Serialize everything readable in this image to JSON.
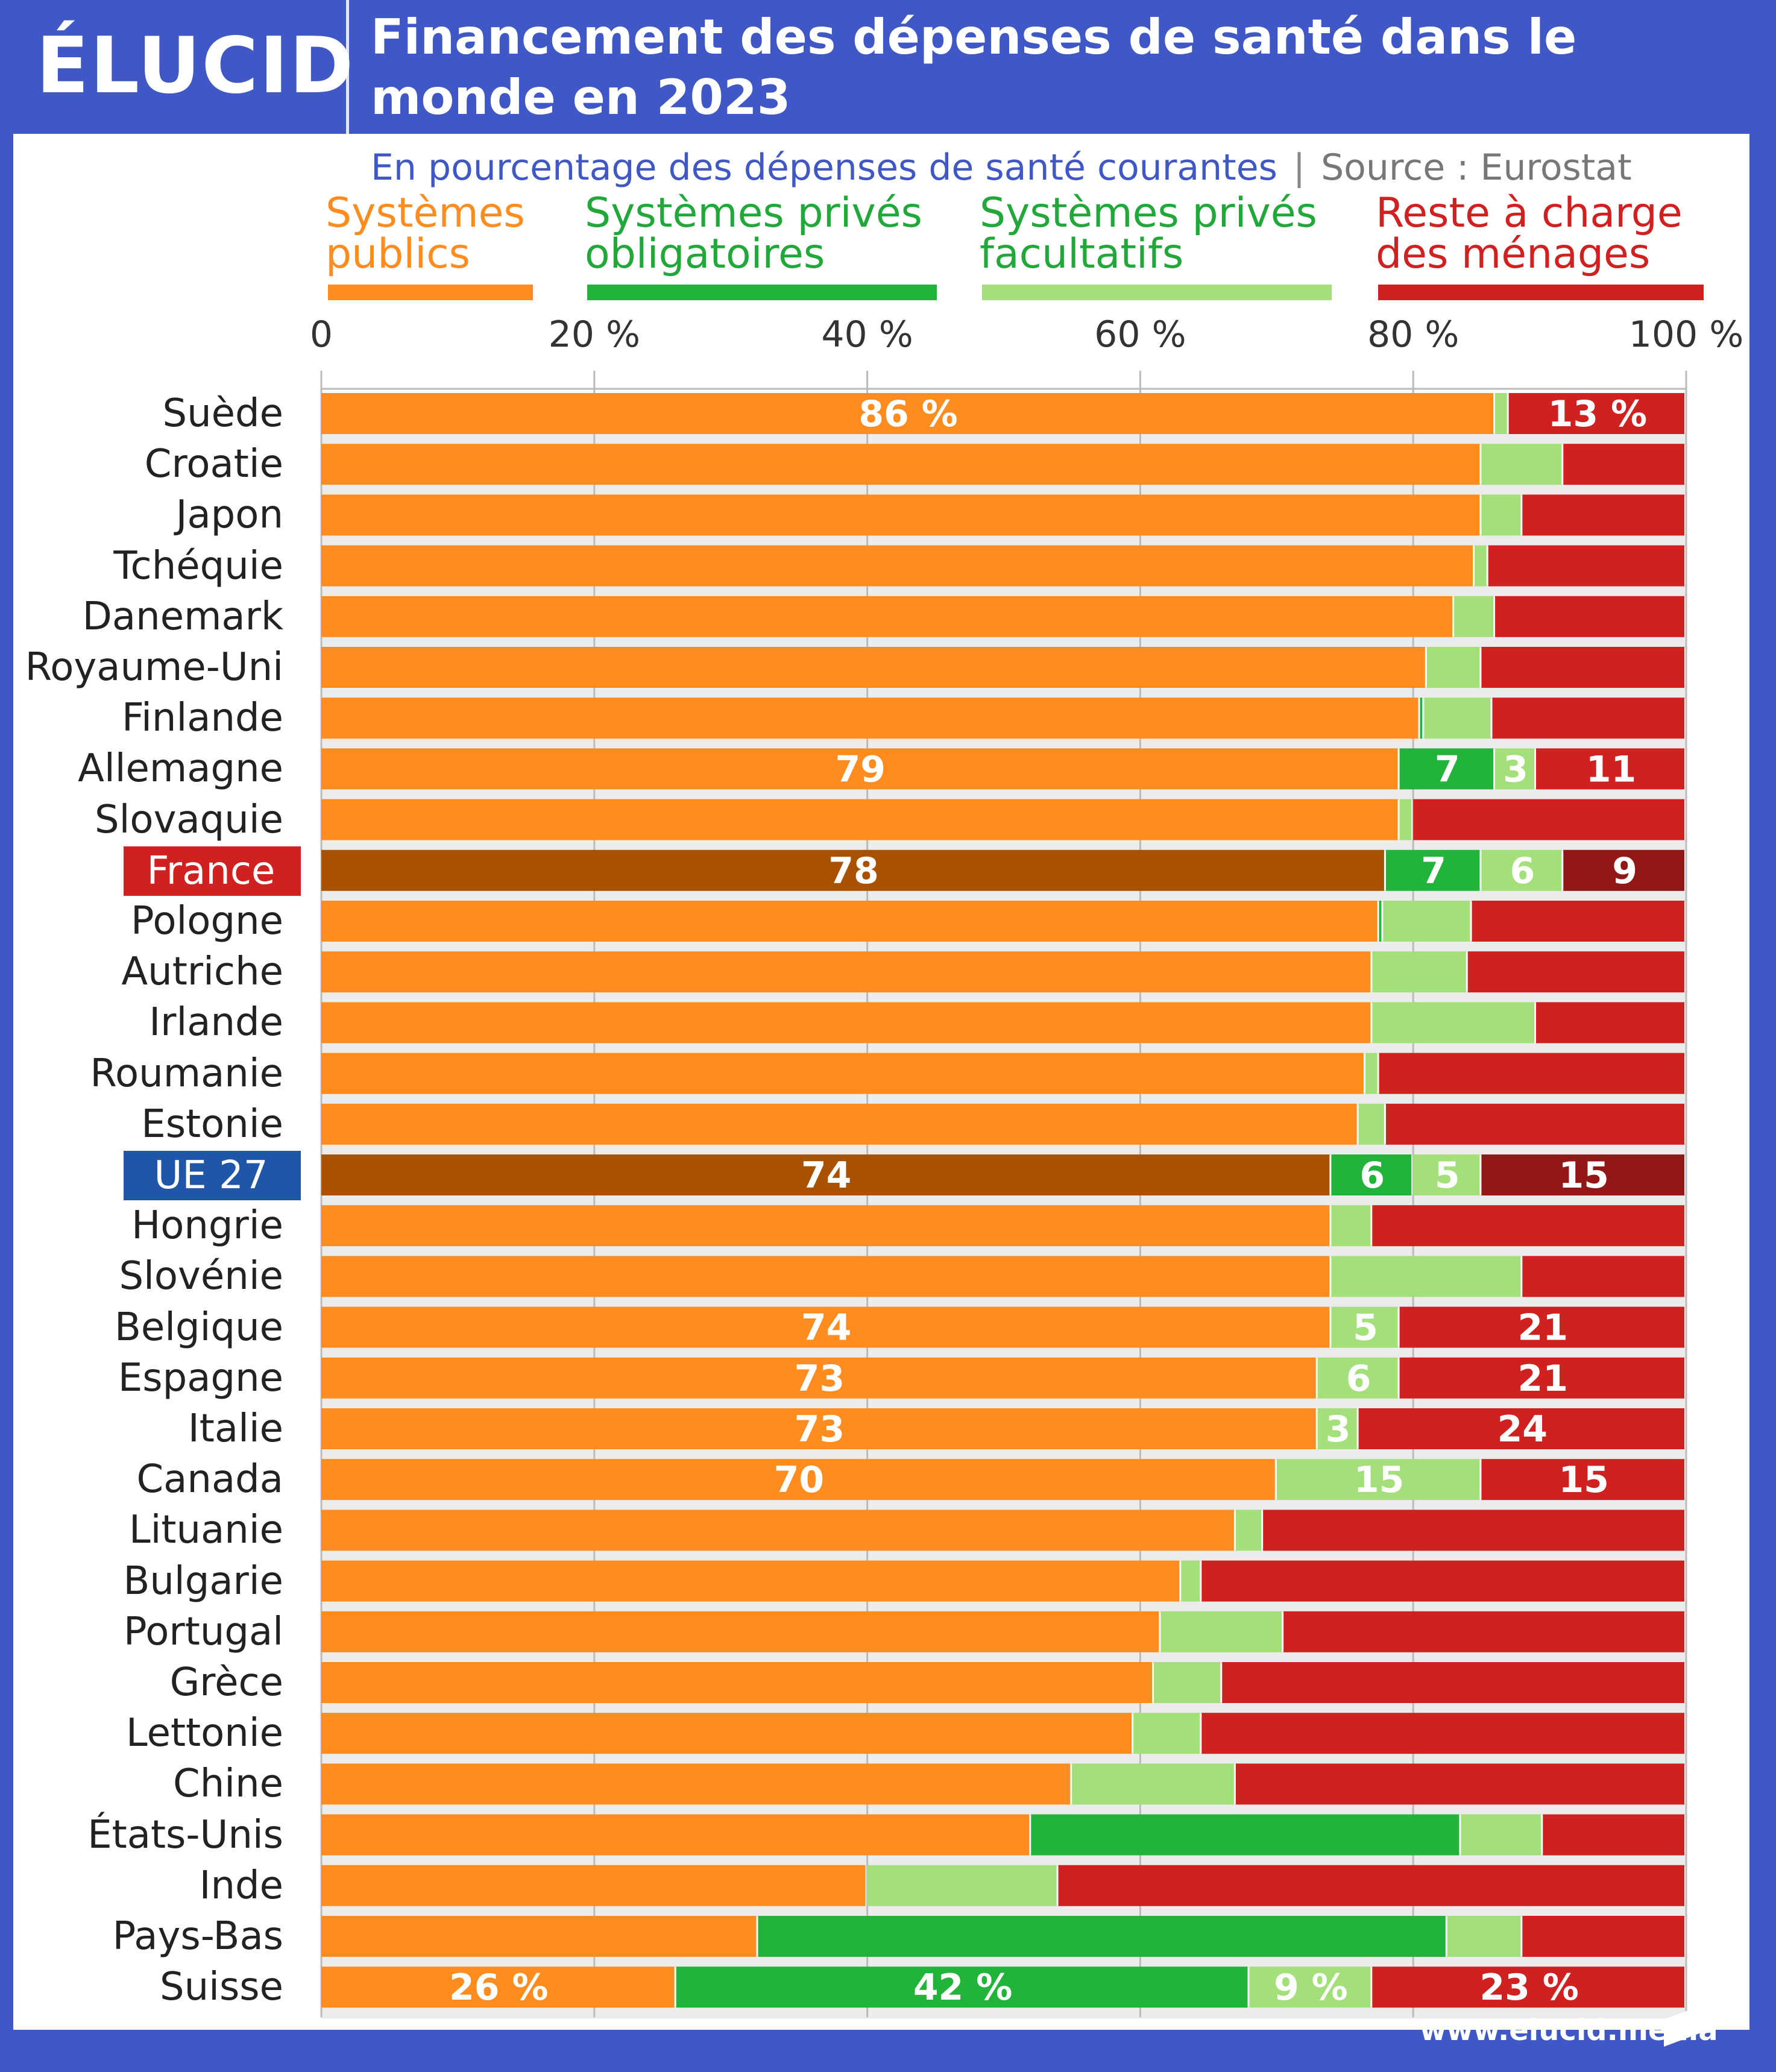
{
  "header": {
    "logo": "ÉLUCID",
    "title": "Financement des dépenses de santé dans le monde en 2023"
  },
  "subtitle": {
    "main": "En pourcentage des dépenses de santé courantes",
    "separator": "|",
    "source": "Source : Eurostat"
  },
  "footer": {
    "url": "www.elucid.media"
  },
  "colors": {
    "public": "#ff8c1f",
    "public_highlight": "#a85200",
    "private_mandatory": "#22b43a",
    "private_voluntary": "#a3e07a",
    "out_of_pocket": "#d02020",
    "out_of_pocket_highlight": "#921818",
    "france_label_bg": "#d02020",
    "eu_label_bg": "#1f56a8",
    "brand": "#3f58c6"
  },
  "chart_data": {
    "type": "bar",
    "orientation": "horizontal",
    "stacked": true,
    "title": "Financement des dépenses de santé dans le monde en 2023",
    "subtitle": "En pourcentage des dépenses de santé courantes",
    "xlabel": "",
    "ylabel": "",
    "xlim": [
      0,
      100
    ],
    "x_ticks": [
      "0",
      "20 %",
      "40 %",
      "60 %",
      "80 %",
      "100 %"
    ],
    "x_tick_values": [
      0,
      20,
      40,
      60,
      80,
      100
    ],
    "grid": true,
    "legend_position": "top",
    "series": [
      {
        "name": "Systèmes publics",
        "legend": "Systèmes\npublics"
      },
      {
        "name": "Systèmes privés obligatoires",
        "legend": "Systèmes privés\nobligatoires"
      },
      {
        "name": "Systèmes privés facultatifs",
        "legend": "Systèmes privés\nfacultatifs"
      },
      {
        "name": "Reste à charge des ménages",
        "legend": "Reste à charge\ndes ménages"
      }
    ],
    "categories": [
      "Suède",
      "Croatie",
      "Japon",
      "Tchéquie",
      "Danemark",
      "Royaume-Uni",
      "Finlande",
      "Allemagne",
      "Slovaquie",
      "France",
      "Pologne",
      "Autriche",
      "Irlande",
      "Roumanie",
      "Estonie",
      "UE 27",
      "Hongrie",
      "Slovénie",
      "Belgique",
      "Espagne",
      "Italie",
      "Canada",
      "Lituanie",
      "Bulgarie",
      "Portugal",
      "Grèce",
      "Lettonie",
      "Chine",
      "États-Unis",
      "Inde",
      "Pays-Bas",
      "Suisse"
    ],
    "highlighted": {
      "France": "france",
      "UE 27": "eu"
    },
    "rows": [
      {
        "country": "Suède",
        "values": [
          86,
          0,
          1,
          13
        ],
        "labels": [
          "86 %",
          "",
          "",
          "13 %"
        ]
      },
      {
        "country": "Croatie",
        "values": [
          85,
          0,
          6,
          9
        ],
        "labels": [
          "",
          "",
          "",
          ""
        ]
      },
      {
        "country": "Japon",
        "values": [
          85,
          0,
          3,
          12
        ],
        "labels": [
          "",
          "",
          "",
          ""
        ]
      },
      {
        "country": "Tchéquie",
        "values": [
          84.5,
          0,
          1,
          14.5
        ],
        "labels": [
          "",
          "",
          "",
          ""
        ]
      },
      {
        "country": "Danemark",
        "values": [
          83,
          0,
          3,
          14
        ],
        "labels": [
          "",
          "",
          "",
          ""
        ]
      },
      {
        "country": "Royaume-Uni",
        "values": [
          81,
          0,
          4,
          15
        ],
        "labels": [
          "",
          "",
          "",
          ""
        ]
      },
      {
        "country": "Finlande",
        "values": [
          80.5,
          0.3,
          5,
          14.2
        ],
        "labels": [
          "",
          "",
          "",
          ""
        ]
      },
      {
        "country": "Allemagne",
        "values": [
          79,
          7,
          3,
          11
        ],
        "labels": [
          "79",
          "7",
          "3",
          "11"
        ]
      },
      {
        "country": "Slovaquie",
        "values": [
          79,
          0,
          1,
          20
        ],
        "labels": [
          "",
          "",
          "",
          ""
        ]
      },
      {
        "country": "France",
        "values": [
          78,
          7,
          6,
          9
        ],
        "labels": [
          "78",
          "7",
          "6",
          "9"
        ]
      },
      {
        "country": "Pologne",
        "values": [
          77.5,
          0.3,
          6.5,
          15.7
        ],
        "labels": [
          "",
          "",
          "",
          ""
        ]
      },
      {
        "country": "Autriche",
        "values": [
          77,
          0,
          7,
          16
        ],
        "labels": [
          "",
          "",
          "",
          ""
        ]
      },
      {
        "country": "Irlande",
        "values": [
          77,
          0,
          12,
          11
        ],
        "labels": [
          "",
          "",
          "",
          ""
        ]
      },
      {
        "country": "Roumanie",
        "values": [
          76.5,
          0,
          1,
          22.5
        ],
        "labels": [
          "",
          "",
          "",
          ""
        ]
      },
      {
        "country": "Estonie",
        "values": [
          76,
          0,
          2,
          22
        ],
        "labels": [
          "",
          "",
          "",
          ""
        ]
      },
      {
        "country": "UE 27",
        "values": [
          74,
          6,
          5,
          15
        ],
        "labels": [
          "74",
          "6",
          "5",
          "15"
        ]
      },
      {
        "country": "Hongrie",
        "values": [
          74,
          0,
          3,
          23
        ],
        "labels": [
          "",
          "",
          "",
          ""
        ]
      },
      {
        "country": "Slovénie",
        "values": [
          74,
          0,
          14,
          12
        ],
        "labels": [
          "",
          "",
          "",
          ""
        ]
      },
      {
        "country": "Belgique",
        "values": [
          74,
          0,
          5,
          21
        ],
        "labels": [
          "74",
          "",
          "5",
          "21"
        ]
      },
      {
        "country": "Espagne",
        "values": [
          73,
          0,
          6,
          21
        ],
        "labels": [
          "73",
          "",
          "6",
          "21"
        ]
      },
      {
        "country": "Italie",
        "values": [
          73,
          0,
          3,
          24
        ],
        "labels": [
          "73",
          "",
          "3",
          "24"
        ]
      },
      {
        "country": "Canada",
        "values": [
          70,
          0,
          15,
          15
        ],
        "labels": [
          "70",
          "",
          "15",
          "15"
        ]
      },
      {
        "country": "Lituanie",
        "values": [
          67,
          0,
          2,
          31
        ],
        "labels": [
          "",
          "",
          "",
          ""
        ]
      },
      {
        "country": "Bulgarie",
        "values": [
          63,
          0,
          1.5,
          35.5
        ],
        "labels": [
          "",
          "",
          "",
          ""
        ]
      },
      {
        "country": "Portugal",
        "values": [
          61.5,
          0,
          9,
          29.5
        ],
        "labels": [
          "",
          "",
          "",
          ""
        ]
      },
      {
        "country": "Grèce",
        "values": [
          61,
          0,
          5,
          34
        ],
        "labels": [
          "",
          "",
          "",
          ""
        ]
      },
      {
        "country": "Lettonie",
        "values": [
          59.5,
          0,
          5,
          35.5
        ],
        "labels": [
          "",
          "",
          "",
          ""
        ]
      },
      {
        "country": "Chine",
        "values": [
          55,
          0,
          12,
          33
        ],
        "labels": [
          "",
          "",
          "",
          ""
        ]
      },
      {
        "country": "États-Unis",
        "values": [
          52,
          31.5,
          6,
          10.5
        ],
        "labels": [
          "",
          "",
          "",
          ""
        ]
      },
      {
        "country": "Inde",
        "values": [
          40,
          0,
          14,
          46
        ],
        "labels": [
          "",
          "",
          "",
          ""
        ]
      },
      {
        "country": "Pays-Bas",
        "values": [
          32,
          50.5,
          5.5,
          12
        ],
        "labels": [
          "",
          "",
          "",
          ""
        ]
      },
      {
        "country": "Suisse",
        "values": [
          26,
          42,
          9,
          23
        ],
        "labels": [
          "26 %",
          "42 %",
          "9 %",
          "23 %"
        ]
      }
    ]
  }
}
